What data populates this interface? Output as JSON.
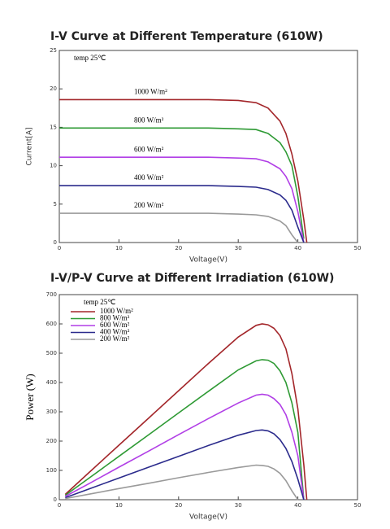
{
  "chart_data": [
    {
      "type": "line",
      "title": "I-V Curve at Different Temperature (610W)",
      "x_label": "Voltage(V)",
      "y_label": "Current[A]",
      "annotation": "temp 25℃",
      "xlim": [
        0,
        50
      ],
      "xticks": [
        0,
        10,
        20,
        30,
        40,
        50
      ],
      "ylim": [
        0,
        25
      ],
      "yticks": [
        0,
        5,
        10,
        15,
        20,
        25
      ],
      "grid": false,
      "legend": "inline",
      "x": [
        0,
        5,
        10,
        15,
        20,
        25,
        30,
        33,
        35,
        37,
        38,
        39,
        40,
        41,
        41.5
      ],
      "series": [
        {
          "name": "1000 W/m²",
          "color": "#a3262a",
          "values": [
            18.6,
            18.6,
            18.6,
            18.6,
            18.6,
            18.6,
            18.5,
            18.2,
            17.5,
            15.8,
            14.2,
            11.5,
            8,
            3,
            0
          ]
        },
        {
          "name": "800 W/m²",
          "color": "#2e9a34",
          "values": [
            14.9,
            14.9,
            14.9,
            14.9,
            14.9,
            14.9,
            14.8,
            14.7,
            14.2,
            13,
            11.8,
            10,
            6,
            0.5,
            null
          ]
        },
        {
          "name": "600 W/m²",
          "color": "#b13fe6",
          "values": [
            11.1,
            11.1,
            11.1,
            11.1,
            11.1,
            11.1,
            11,
            10.9,
            10.5,
            9.6,
            8.6,
            7,
            4,
            0,
            null
          ]
        },
        {
          "name": "400 W/m²",
          "color": "#2b2b8c",
          "values": [
            7.4,
            7.4,
            7.4,
            7.4,
            7.4,
            7.4,
            7.3,
            7.2,
            6.9,
            6.2,
            5.5,
            4.2,
            2,
            0,
            null
          ]
        },
        {
          "name": "200 W/m²",
          "color": "#9a9a9a",
          "values": [
            3.8,
            3.8,
            3.8,
            3.8,
            3.8,
            3.8,
            3.7,
            3.6,
            3.4,
            2.8,
            2.2,
            1,
            0,
            null,
            null
          ]
        }
      ]
    },
    {
      "type": "line",
      "title": "I-V/P-V Curve at Different Irradiation (610W)",
      "x_label": "Voltage(V)",
      "y_label": "Power (W)",
      "annotation": "temp 25℃",
      "xlim": [
        0,
        50
      ],
      "xticks": [
        0,
        10,
        20,
        30,
        40,
        50
      ],
      "ylim": [
        0,
        700
      ],
      "yticks": [
        0,
        100,
        200,
        300,
        400,
        500,
        600,
        700
      ],
      "grid": false,
      "legend": "upper left",
      "x": [
        1,
        5,
        10,
        15,
        20,
        25,
        30,
        33,
        34,
        35,
        36,
        37,
        38,
        39,
        40,
        41,
        41.5
      ],
      "series": [
        {
          "name": "1000 W/m²",
          "color": "#a3262a",
          "values": [
            18,
            93,
            186,
            279,
            372,
            465,
            555,
            595,
            600,
            597,
            585,
            560,
            515,
            430,
            310,
            120,
            0
          ]
        },
        {
          "name": "800 W/m²",
          "color": "#2e9a34",
          "values": [
            15,
            74,
            148,
            222,
            296,
            370,
            443,
            474,
            478,
            476,
            465,
            440,
            400,
            330,
            230,
            0,
            null
          ]
        },
        {
          "name": "600 W/m²",
          "color": "#b13fe6",
          "values": [
            11,
            55,
            111,
            166,
            222,
            277,
            330,
            357,
            360,
            357,
            345,
            325,
            290,
            230,
            150,
            0,
            null
          ]
        },
        {
          "name": "400 W/m²",
          "color": "#2b2b8c",
          "values": [
            7,
            37,
            74,
            111,
            148,
            185,
            220,
            236,
            238,
            235,
            225,
            205,
            175,
            130,
            70,
            0,
            null
          ]
        },
        {
          "name": "200 W/m²",
          "color": "#9a9a9a",
          "values": [
            4,
            19,
            38,
            56,
            75,
            93,
            110,
            118,
            117,
            114,
            105,
            90,
            65,
            30,
            0,
            null,
            null
          ]
        }
      ]
    }
  ]
}
